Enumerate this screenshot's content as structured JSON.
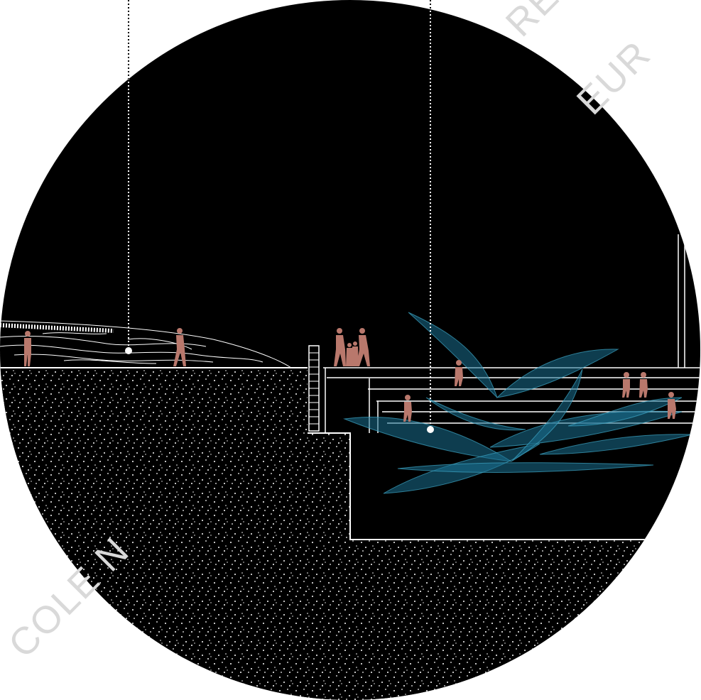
{
  "watermark": {
    "line_top": "RE DE",
    "line_mid": "EUR",
    "line_bottom": "COLE N"
  },
  "colors": {
    "background": "#000000",
    "page": "#ffffff",
    "line": "#ffffff",
    "figure": "#b9786c",
    "foliage": "#1a6f8f",
    "foliage_light": "#3fa6c6",
    "watermark": "#d9d9d9"
  },
  "figures": {
    "left_terrace": 2,
    "group_center": 4,
    "steps": 5
  },
  "markers": {
    "count": 2,
    "style": "dotted-leader-with-dot"
  }
}
